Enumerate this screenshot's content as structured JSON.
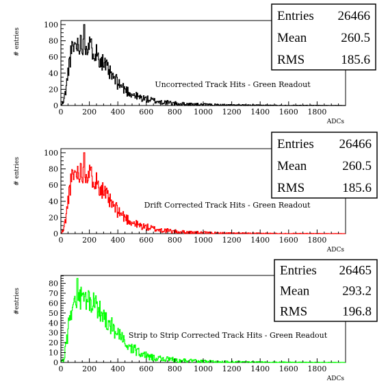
{
  "chart_data": [
    {
      "type": "histogram",
      "title": "Uncorrected Track Hits - Green Readout",
      "xlabel": "ADCs",
      "ylabel": "# entries",
      "xlim": [
        0,
        2000
      ],
      "ylim": [
        0,
        105
      ],
      "xticks": [
        0,
        200,
        400,
        600,
        800,
        1000,
        1200,
        1400,
        1600,
        1800
      ],
      "yticks": [
        0,
        20,
        40,
        60,
        80,
        100
      ],
      "color": "#000000",
      "stats": [
        {
          "label": "Entries",
          "value": "26466"
        },
        {
          "label": "Mean",
          "value": "260.5"
        },
        {
          "label": "RMS",
          "value": "185.6"
        }
      ],
      "profile": {
        "x": [
          0,
          20,
          40,
          60,
          80,
          100,
          130,
          160,
          200,
          250,
          300,
          350,
          400,
          450,
          500,
          550,
          600,
          650,
          700,
          800,
          900,
          1000,
          1100,
          1200,
          1400,
          1600,
          1800,
          2000
        ],
        "y": [
          0,
          5,
          25,
          55,
          70,
          75,
          77,
          76,
          74,
          65,
          52,
          38,
          28,
          20,
          14,
          10,
          8,
          6,
          4.5,
          2.5,
          1.5,
          1,
          0.6,
          0.4,
          0.2,
          0.1,
          0.05,
          0
        ]
      },
      "peak": {
        "x": 165,
        "y": 100
      }
    },
    {
      "type": "histogram",
      "title": "Drift Corrected Track Hits - Green Readout",
      "xlabel": "ADCs",
      "ylabel": "# entries",
      "xlim": [
        0,
        2000
      ],
      "ylim": [
        0,
        105
      ],
      "xticks": [
        0,
        200,
        400,
        600,
        800,
        1000,
        1200,
        1400,
        1600,
        1800
      ],
      "yticks": [
        0,
        20,
        40,
        60,
        80,
        100
      ],
      "color": "#ff0000",
      "stats": [
        {
          "label": "Entries",
          "value": "26466"
        },
        {
          "label": "Mean",
          "value": "260.5"
        },
        {
          "label": "RMS",
          "value": "185.6"
        }
      ],
      "profile": {
        "x": [
          0,
          20,
          40,
          60,
          80,
          100,
          130,
          160,
          200,
          250,
          300,
          350,
          400,
          450,
          500,
          550,
          600,
          650,
          700,
          800,
          900,
          1000,
          1100,
          1200,
          1400,
          1600,
          1800,
          2000
        ],
        "y": [
          0,
          5,
          25,
          55,
          70,
          75,
          77,
          76,
          74,
          65,
          52,
          38,
          28,
          20,
          14,
          10,
          8,
          6,
          4.5,
          2.5,
          1.5,
          1,
          0.6,
          0.4,
          0.2,
          0.1,
          0.05,
          0
        ]
      },
      "peak": {
        "x": 165,
        "y": 100
      }
    },
    {
      "type": "histogram",
      "title": "Strip to Strip Corrected Track Hits - Green Readout",
      "xlabel": "ADCs",
      "ylabel": "#entries",
      "xlim": [
        0,
        2000
      ],
      "ylim": [
        0,
        88
      ],
      "xticks": [
        0,
        200,
        400,
        600,
        800,
        1000,
        1200,
        1400,
        1600,
        1800
      ],
      "yticks": [
        0,
        10,
        20,
        30,
        40,
        50,
        60,
        70,
        80
      ],
      "color": "#00ff00",
      "stats": [
        {
          "label": "Entries",
          "value": "26465"
        },
        {
          "label": "Mean",
          "value": "293.2"
        },
        {
          "label": "RMS",
          "value": "196.8"
        }
      ],
      "profile": {
        "x": [
          0,
          20,
          40,
          60,
          80,
          100,
          150,
          200,
          250,
          300,
          350,
          400,
          450,
          500,
          550,
          600,
          650,
          700,
          800,
          900,
          1000,
          1100,
          1200,
          1400,
          1600,
          1800,
          2000
        ],
        "y": [
          0,
          3,
          20,
          45,
          58,
          63,
          65,
          62,
          56,
          48,
          38,
          28,
          20,
          14,
          10,
          7,
          5,
          4,
          2.5,
          1.5,
          1,
          0.6,
          0.4,
          0.2,
          0.1,
          0.05,
          0
        ]
      },
      "peak": {
        "x": 115,
        "y": 85
      }
    }
  ]
}
